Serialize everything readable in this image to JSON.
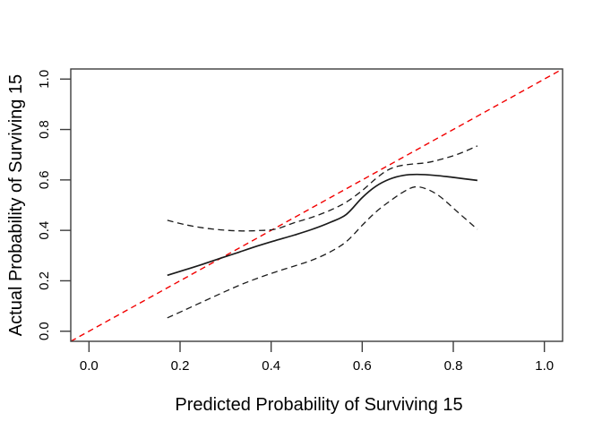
{
  "figure": {
    "background": "#ffffff"
  },
  "chart_data": {
    "type": "line",
    "title": "",
    "xlabel": "Predicted Probability of Surviving 15",
    "ylabel": "Actual Probability of Surviving 15",
    "xlim": [
      -0.04,
      1.04
    ],
    "ylim": [
      -0.04,
      1.04
    ],
    "grid": false,
    "legend_position": "none",
    "x_ticks": {
      "values": [
        0.0,
        0.2,
        0.4,
        0.6,
        0.8,
        1.0
      ],
      "labels": [
        "0.0",
        "0.2",
        "0.4",
        "0.6",
        "0.8",
        "1.0"
      ]
    },
    "y_ticks": {
      "values": [
        0.0,
        0.2,
        0.4,
        0.6,
        0.8,
        1.0
      ],
      "labels": [
        "0.0",
        "0.2",
        "0.4",
        "0.6",
        "0.8",
        "1.0"
      ]
    },
    "axis_color": "#3d3d3d",
    "series": [
      {
        "name": "ideal-reference-line",
        "color": "#f20000",
        "style": "dashed",
        "width": 1.4,
        "dash": [
          6.5,
          4.5
        ],
        "smooth": false,
        "points": [
          [
            -0.04,
            -0.04
          ],
          [
            1.04,
            1.04
          ]
        ]
      },
      {
        "name": "calibration-curve",
        "color": "#1b1b1b",
        "style": "solid",
        "width": 1.7,
        "dash": null,
        "smooth": true,
        "points": [
          [
            0.172,
            0.222
          ],
          [
            0.21,
            0.243
          ],
          [
            0.25,
            0.266
          ],
          [
            0.29,
            0.29
          ],
          [
            0.33,
            0.314
          ],
          [
            0.37,
            0.338
          ],
          [
            0.41,
            0.36
          ],
          [
            0.45,
            0.381
          ],
          [
            0.49,
            0.404
          ],
          [
            0.53,
            0.432
          ],
          [
            0.565,
            0.463
          ],
          [
            0.6,
            0.53
          ],
          [
            0.63,
            0.575
          ],
          [
            0.66,
            0.603
          ],
          [
            0.69,
            0.618
          ],
          [
            0.72,
            0.622
          ],
          [
            0.76,
            0.618
          ],
          [
            0.8,
            0.61
          ],
          [
            0.853,
            0.598
          ]
        ]
      },
      {
        "name": "upper-confidence-band",
        "color": "#1b1b1b",
        "style": "dashed",
        "width": 1.3,
        "dash": [
          7,
          4.5
        ],
        "smooth": true,
        "points": [
          [
            0.172,
            0.44
          ],
          [
            0.21,
            0.423
          ],
          [
            0.25,
            0.41
          ],
          [
            0.29,
            0.402
          ],
          [
            0.33,
            0.398
          ],
          [
            0.37,
            0.399
          ],
          [
            0.41,
            0.405
          ],
          [
            0.45,
            0.43
          ],
          [
            0.49,
            0.452
          ],
          [
            0.53,
            0.48
          ],
          [
            0.565,
            0.512
          ],
          [
            0.6,
            0.558
          ],
          [
            0.63,
            0.605
          ],
          [
            0.655,
            0.638
          ],
          [
            0.68,
            0.655
          ],
          [
            0.71,
            0.663
          ],
          [
            0.74,
            0.668
          ],
          [
            0.77,
            0.68
          ],
          [
            0.81,
            0.702
          ],
          [
            0.853,
            0.735
          ]
        ]
      },
      {
        "name": "lower-confidence-band",
        "color": "#1b1b1b",
        "style": "dashed",
        "width": 1.3,
        "dash": [
          7,
          4.5
        ],
        "smooth": true,
        "points": [
          [
            0.172,
            0.053
          ],
          [
            0.21,
            0.084
          ],
          [
            0.25,
            0.117
          ],
          [
            0.29,
            0.15
          ],
          [
            0.33,
            0.182
          ],
          [
            0.37,
            0.21
          ],
          [
            0.41,
            0.235
          ],
          [
            0.45,
            0.258
          ],
          [
            0.49,
            0.282
          ],
          [
            0.53,
            0.315
          ],
          [
            0.565,
            0.355
          ],
          [
            0.6,
            0.42
          ],
          [
            0.63,
            0.473
          ],
          [
            0.66,
            0.515
          ],
          [
            0.69,
            0.552
          ],
          [
            0.715,
            0.572
          ],
          [
            0.74,
            0.565
          ],
          [
            0.77,
            0.535
          ],
          [
            0.81,
            0.472
          ],
          [
            0.853,
            0.404
          ]
        ]
      }
    ]
  }
}
